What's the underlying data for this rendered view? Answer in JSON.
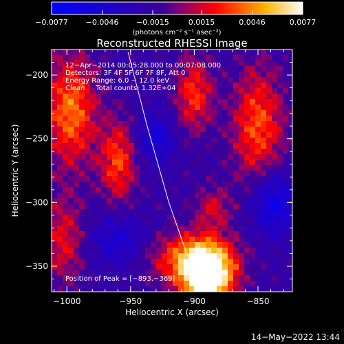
{
  "colorbar": {
    "ticks": [
      "-0.0077",
      "-0.0046",
      "-0.0015",
      "0.0015",
      "0.0046",
      "0.0077"
    ],
    "unit_label": "(photons cm⁻² s⁻¹ asec⁻²)",
    "range": [
      -0.0077,
      0.0077
    ]
  },
  "chart_data": {
    "type": "heatmap",
    "title": "Reconstructed RHESSI Image",
    "xlabel": "Heliocentric X (arcsec)",
    "ylabel": "Heliocentric Y (arcsec)",
    "xlim": [
      -1012,
      -823
    ],
    "ylim": [
      -370,
      -180
    ],
    "x_ticks": [
      {
        "value": -1000,
        "label": "−1000"
      },
      {
        "value": -950,
        "label": "−950"
      },
      {
        "value": -900,
        "label": "−900"
      },
      {
        "value": -850,
        "label": "−850"
      }
    ],
    "y_ticks": [
      {
        "value": -200,
        "label": "−200"
      },
      {
        "value": -250,
        "label": "−250"
      },
      {
        "value": -300,
        "label": "−300"
      },
      {
        "value": -350,
        "label": "−350"
      }
    ],
    "info_lines": [
      "12−Apr−2014 00:05:28.000 to 00:07:08.000",
      "Detectors: 3F 4F 5F 6F 7F 8F, Att 0",
      "Energy Range: 6.0 − 12.0 keV",
      "Clean     Total counts: 1.32E+04"
    ],
    "peak_label": "Position of Peak = [−893,−369]",
    "peak_position": [
      -893,
      -369
    ],
    "limb_line": [
      [
        -952,
        -182
      ],
      [
        -937,
        -240
      ],
      [
        -920,
        -300
      ],
      [
        -906,
        -340
      ],
      [
        -890,
        -365
      ]
    ],
    "blobs": [
      {
        "x": -890,
        "y": -358,
        "sx": 14,
        "sy": 16,
        "amp": 0.011
      },
      {
        "x": -902,
        "y": -344,
        "sx": 22,
        "sy": 14,
        "amp": 0.0055
      },
      {
        "x": -997,
        "y": -228,
        "sx": 14,
        "sy": 30,
        "amp": 0.0058
      },
      {
        "x": -960,
        "y": -268,
        "sx": 10,
        "sy": 22,
        "amp": 0.0048
      },
      {
        "x": -1003,
        "y": -330,
        "sx": 12,
        "sy": 24,
        "amp": 0.0035
      },
      {
        "x": -900,
        "y": -215,
        "sx": 10,
        "sy": 20,
        "amp": 0.0045
      },
      {
        "x": -850,
        "y": -240,
        "sx": 14,
        "sy": 32,
        "amp": 0.005
      },
      {
        "x": -885,
        "y": -305,
        "sx": 10,
        "sy": 12,
        "amp": 0.003
      },
      {
        "x": -838,
        "y": -300,
        "sx": 12,
        "sy": 18,
        "amp": -0.0045
      },
      {
        "x": -930,
        "y": -250,
        "sx": 10,
        "sy": 14,
        "amp": -0.0035
      },
      {
        "x": -960,
        "y": -330,
        "sx": 16,
        "sy": 14,
        "amp": -0.003
      }
    ],
    "baseline": -0.0016
  },
  "footer": {
    "timestamp": "14−May−2022 13:44"
  }
}
